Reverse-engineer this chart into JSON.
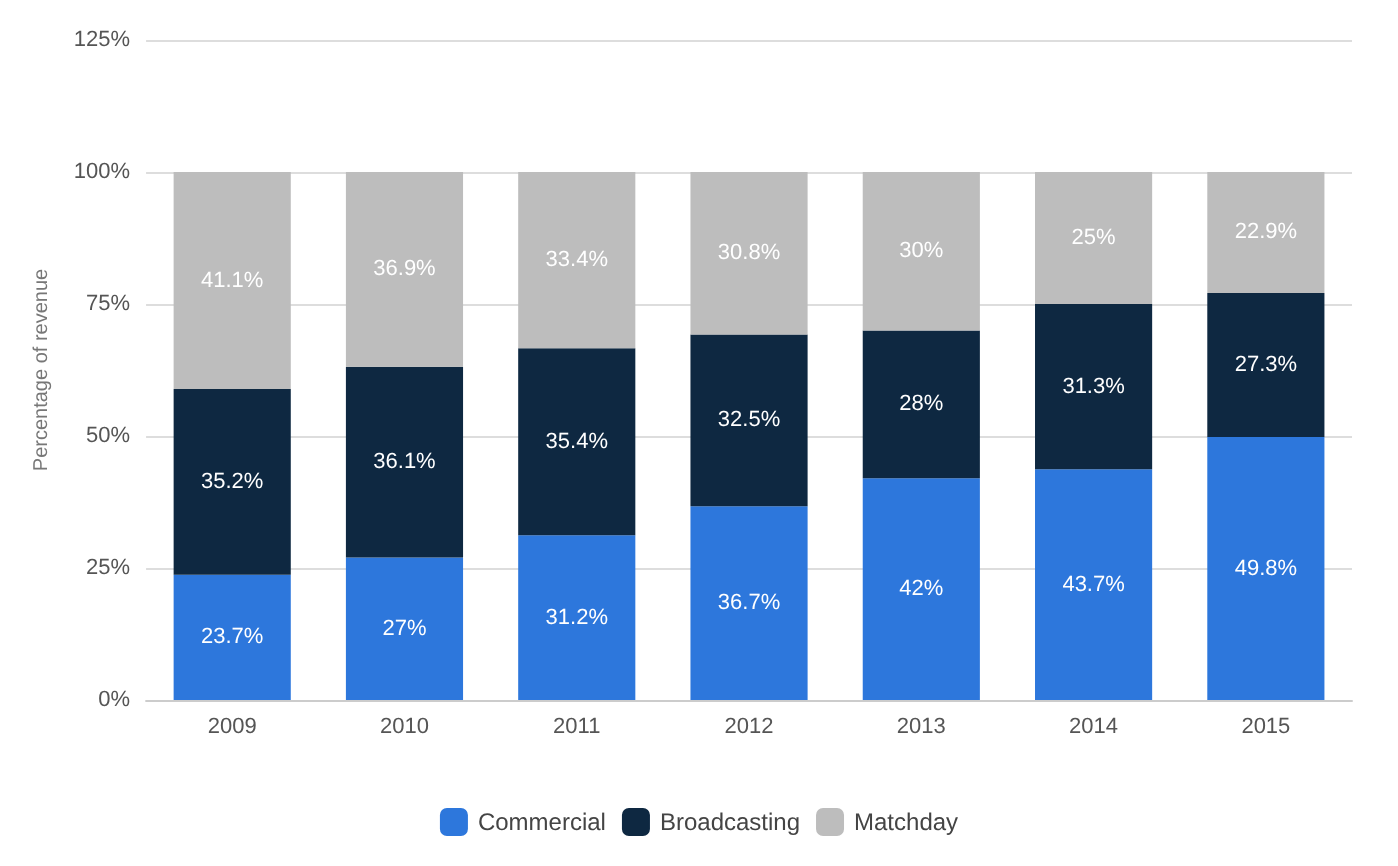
{
  "chart_data": {
    "type": "bar",
    "stacked": true,
    "ylabel": "Percentage of revenue",
    "categories": [
      "2009",
      "2010",
      "2011",
      "2012",
      "2013",
      "2014",
      "2015"
    ],
    "series": [
      {
        "name": "Commercial",
        "color": "#2d77dc",
        "values": [
          23.7,
          27,
          31.2,
          36.7,
          42,
          43.7,
          49.8
        ],
        "value_labels": [
          "23.7%",
          "27%",
          "31.2%",
          "36.7%",
          "42%",
          "43.7%",
          "49.8%"
        ]
      },
      {
        "name": "Broadcasting",
        "color": "#0e2841",
        "values": [
          35.2,
          36.1,
          35.4,
          32.5,
          28,
          31.3,
          27.3
        ],
        "value_labels": [
          "35.2%",
          "36.1%",
          "35.4%",
          "32.5%",
          "28%",
          "31.3%",
          "27.3%"
        ]
      },
      {
        "name": "Matchday",
        "color": "#bdbdbd",
        "values": [
          41.1,
          36.9,
          33.4,
          30.8,
          30,
          25,
          22.9
        ],
        "value_labels": [
          "41.1%",
          "36.9%",
          "33.4%",
          "30.8%",
          "30%",
          "25%",
          "22.9%"
        ]
      }
    ],
    "ylim": [
      0,
      125
    ],
    "yticks": [
      {
        "value": 0,
        "label": "0%"
      },
      {
        "value": 25,
        "label": "25%"
      },
      {
        "value": 50,
        "label": "50%"
      },
      {
        "value": 75,
        "label": "75%"
      },
      {
        "value": 100,
        "label": "100%"
      },
      {
        "value": 125,
        "label": "125%"
      }
    ],
    "grid": "y",
    "legend": "bottom"
  }
}
